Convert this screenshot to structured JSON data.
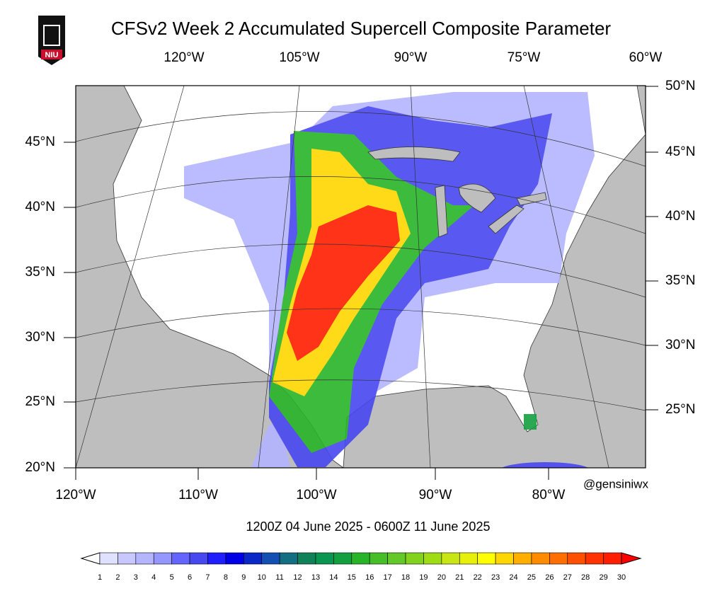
{
  "title": "CFSv2 Week 2 Accumulated Supercell Composite Parameter",
  "logo": "NIU",
  "map": {
    "top_lon_labels": [
      "120°W",
      "105°W",
      "90°W",
      "75°W",
      "60°W"
    ],
    "right_lat_labels": [
      "50°N",
      "45°N",
      "40°N",
      "35°N",
      "30°N",
      "25°N"
    ],
    "left_lat_labels": [
      "45°N",
      "40°N",
      "35°N",
      "30°N",
      "25°N",
      "20°N"
    ],
    "bottom_lon_labels": [
      "120°W",
      "110°W",
      "100°W",
      "90°W",
      "80°W"
    ],
    "credit": "@gensiniwx",
    "valid_period": "1200Z 04  June  2025  - 0600Z 11  June  2025"
  },
  "colorbar": {
    "labels": [
      1,
      2,
      3,
      4,
      5,
      6,
      7,
      8,
      9,
      10,
      11,
      12,
      13,
      14,
      15,
      16,
      17,
      18,
      19,
      20,
      21,
      22,
      23,
      24,
      25,
      26,
      27,
      28,
      29,
      30
    ],
    "colors": [
      "#ffffff",
      "#e0e0ff",
      "#c8c8ff",
      "#b4b4ff",
      "#9696ff",
      "#6464ff",
      "#4848f0",
      "#1e1eff",
      "#0000e6",
      "#0a28c8",
      "#1450b4",
      "#146e82",
      "#10825a",
      "#0a9650",
      "#14a040",
      "#28b428",
      "#46be28",
      "#64c828",
      "#82d21e",
      "#a0dc14",
      "#c8e614",
      "#e6f00a",
      "#ffff00",
      "#ffd700",
      "#ffaf00",
      "#ff8c00",
      "#ff6e00",
      "#ff5000",
      "#ff3200",
      "#ff1e00",
      "#ff0000"
    ]
  }
}
